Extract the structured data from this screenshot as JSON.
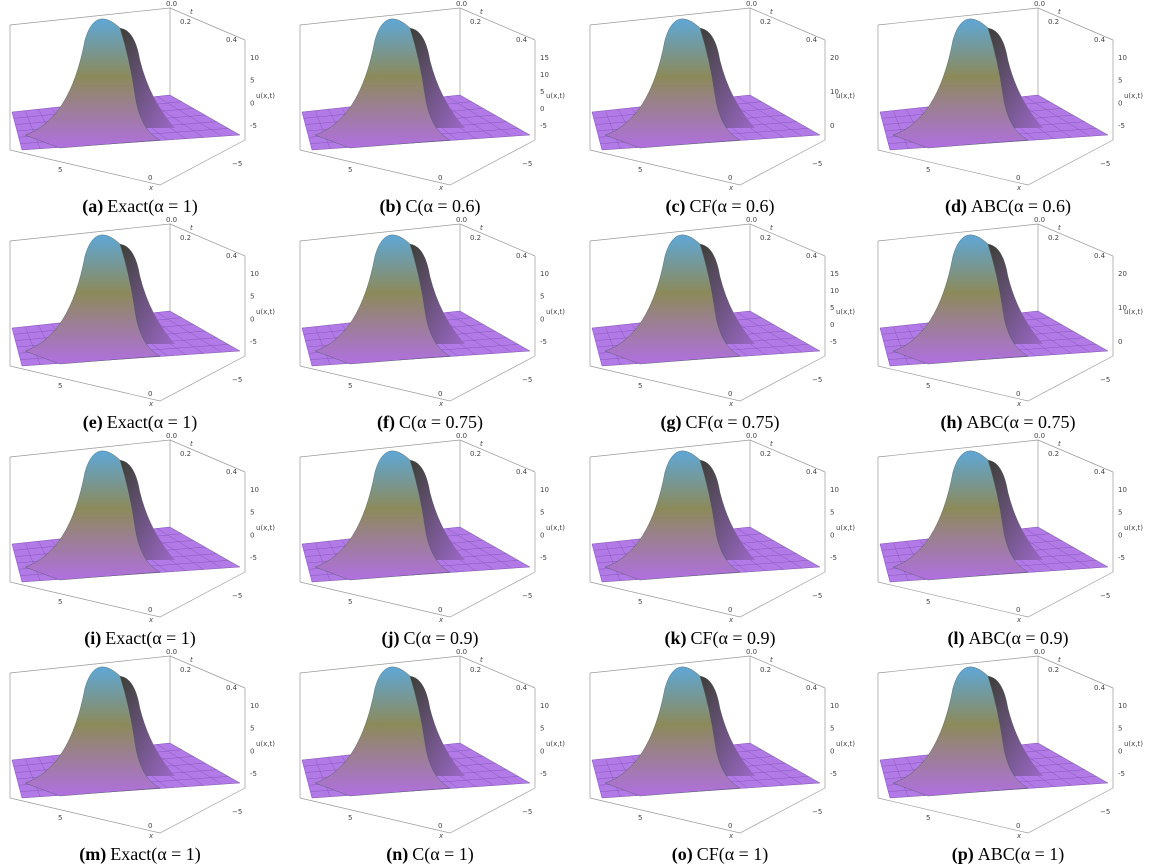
{
  "figure": {
    "panels": [
      {
        "label": "(a)",
        "caption": "Exact(α = 1)",
        "t_ticks": [
          "0.0",
          "0.2",
          "0.4"
        ],
        "t_label": "t",
        "u_ticks": [
          "10",
          "5",
          "0",
          "-5"
        ],
        "u_label": "u(x,t)",
        "x_ticks": [
          "5",
          "0",
          "−5"
        ],
        "x_label": "x"
      },
      {
        "label": "(b)",
        "caption": "C(α = 0.6)",
        "t_ticks": [
          "0.0",
          "0.2",
          "0.4"
        ],
        "t_label": "t",
        "u_ticks": [
          "15",
          "10",
          "5",
          "0",
          "-5"
        ],
        "u_label": "u(x,t)",
        "x_ticks": [
          "5",
          "0",
          "−5"
        ],
        "x_label": "x"
      },
      {
        "label": "(c)",
        "caption": "CF(α = 0.6)",
        "t_ticks": [
          "0.0",
          "0.2",
          "0.4"
        ],
        "t_label": "t",
        "u_ticks": [
          "20",
          "10",
          "0"
        ],
        "u_label": "u(x,t)",
        "x_ticks": [
          "5",
          "0",
          "−5"
        ],
        "x_label": "x"
      },
      {
        "label": "(d)",
        "caption": "ABC(α = 0.6)",
        "t_ticks": [
          "0.0",
          "0.2",
          "0.4"
        ],
        "t_label": "t",
        "u_ticks": [
          "10",
          "5",
          "0",
          "-5"
        ],
        "u_label": "u(x,t)",
        "x_ticks": [
          "5",
          "0",
          "−5"
        ],
        "x_label": "x"
      },
      {
        "label": "(e)",
        "caption": "Exact(α = 1)",
        "t_ticks": [
          "0.0",
          "0.2",
          "0.4"
        ],
        "t_label": "t",
        "u_ticks": [
          "10",
          "5",
          "0",
          "-5"
        ],
        "u_label": "u(x,t)",
        "x_ticks": [
          "5",
          "0",
          "−5"
        ],
        "x_label": "x"
      },
      {
        "label": "(f)",
        "caption": "C(α = 0.75)",
        "t_ticks": [
          "0.0",
          "0.2",
          "0.4"
        ],
        "t_label": "t",
        "u_ticks": [
          "10",
          "5",
          "0",
          "-5"
        ],
        "u_label": "u(x,t)",
        "x_ticks": [
          "5",
          "0",
          "−5"
        ],
        "x_label": "x"
      },
      {
        "label": "(g)",
        "caption": "CF(α = 0.75)",
        "t_ticks": [
          "0.0",
          "0.2",
          "0.4"
        ],
        "t_label": "t",
        "u_ticks": [
          "15",
          "10",
          "5",
          "0",
          "-5"
        ],
        "u_label": "u(x,t)",
        "x_ticks": [
          "5",
          "0",
          "−5"
        ],
        "x_label": "x"
      },
      {
        "label": "(h)",
        "caption": "ABC(α = 0.75)",
        "t_ticks": [
          "0.0",
          "0.2",
          "0.4"
        ],
        "t_label": "t",
        "u_ticks": [
          "20",
          "10",
          "0"
        ],
        "u_label": "u(x,t)",
        "x_ticks": [
          "5",
          "0",
          "−5"
        ],
        "x_label": "x"
      },
      {
        "label": "(i)",
        "caption": "Exact(α = 1)",
        "t_ticks": [
          "0.0",
          "0.2",
          "0.4"
        ],
        "t_label": "t",
        "u_ticks": [
          "10",
          "5",
          "0",
          "-5"
        ],
        "u_label": "u(x,t)",
        "x_ticks": [
          "5",
          "0",
          "−5"
        ],
        "x_label": "x"
      },
      {
        "label": "(j)",
        "caption": "C(α = 0.9)",
        "t_ticks": [
          "0.0",
          "0.2",
          "0.4"
        ],
        "t_label": "t",
        "u_ticks": [
          "10",
          "5",
          "0",
          "-5"
        ],
        "u_label": "u(x,t)",
        "x_ticks": [
          "5",
          "0",
          "−5"
        ],
        "x_label": "x"
      },
      {
        "label": "(k)",
        "caption": "CF(α = 0.9)",
        "t_ticks": [
          "0.0",
          "0.2",
          "0.4"
        ],
        "t_label": "t",
        "u_ticks": [
          "10",
          "5",
          "0",
          "-5"
        ],
        "u_label": "u(x,t)",
        "x_ticks": [
          "5",
          "0",
          "−5"
        ],
        "x_label": "x"
      },
      {
        "label": "(l)",
        "caption": "ABC(α = 0.9)",
        "t_ticks": [
          "0.0",
          "0.2",
          "0.4"
        ],
        "t_label": "t",
        "u_ticks": [
          "10",
          "5",
          "0",
          "-5"
        ],
        "u_label": "u(x,t)",
        "x_ticks": [
          "5",
          "0",
          "−5"
        ],
        "x_label": "x"
      },
      {
        "label": "(m)",
        "caption": "Exact(α = 1)",
        "t_ticks": [
          "0.0",
          "0.2",
          "0.4"
        ],
        "t_label": "t",
        "u_ticks": [
          "10",
          "5",
          "0",
          "-5"
        ],
        "u_label": "u(x,t)",
        "x_ticks": [
          "5",
          "0",
          "−5"
        ],
        "x_label": "x"
      },
      {
        "label": "(n)",
        "caption": "C(α = 1)",
        "t_ticks": [
          "0.0",
          "0.2",
          "0.4"
        ],
        "t_label": "t",
        "u_ticks": [
          "10",
          "5",
          "0",
          "-5"
        ],
        "u_label": "u(x,t)",
        "x_ticks": [
          "5",
          "0",
          "−5"
        ],
        "x_label": "x"
      },
      {
        "label": "(o)",
        "caption": "CF(α = 1)",
        "t_ticks": [
          "0.0",
          "0.2",
          "0.4"
        ],
        "t_label": "t",
        "u_ticks": [
          "10",
          "5",
          "0",
          "-5"
        ],
        "u_label": "u(x,t)",
        "x_ticks": [
          "5",
          "0",
          "−5"
        ],
        "x_label": "x"
      },
      {
        "label": "(p)",
        "caption": "ABC(α = 1)",
        "t_ticks": [
          "0.0",
          "0.2",
          "0.4"
        ],
        "t_label": "t",
        "u_ticks": [
          "10",
          "5",
          "0",
          "-5"
        ],
        "u_label": "u(x,t)",
        "x_ticks": [
          "5",
          "0",
          "−5"
        ],
        "x_label": "x"
      }
    ]
  }
}
